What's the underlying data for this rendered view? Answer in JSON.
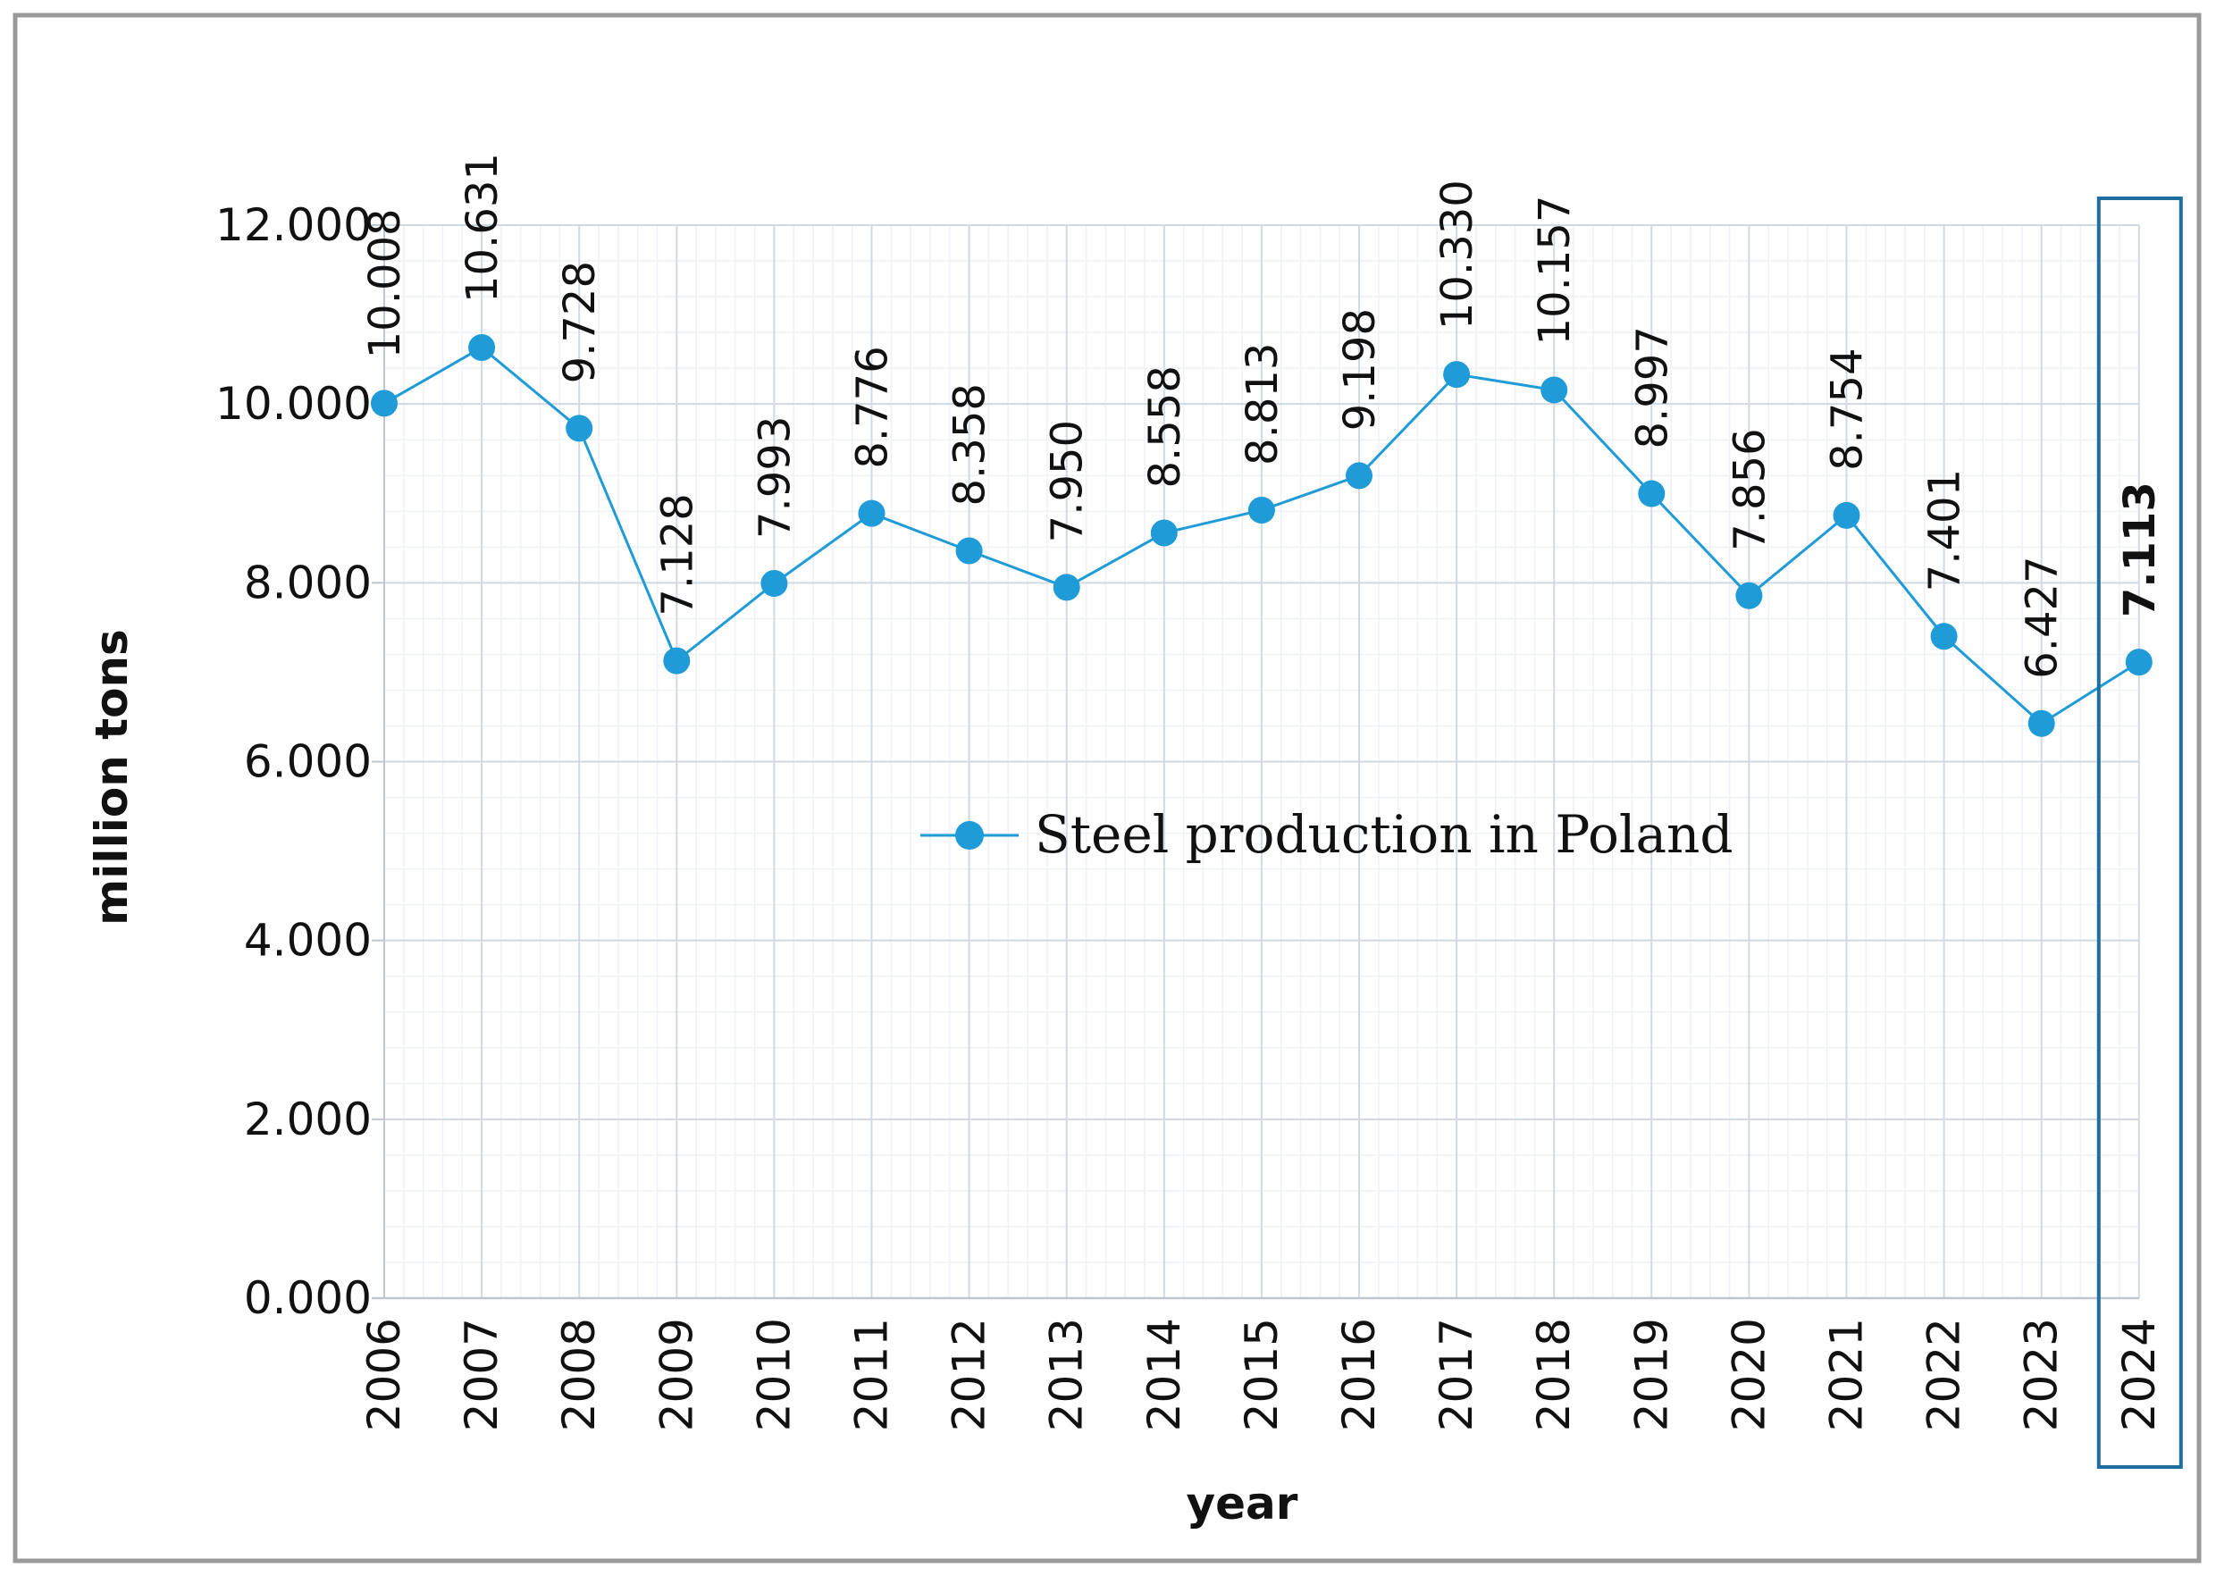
{
  "chart_data": {
    "type": "line",
    "categories": [
      "2006",
      "2007",
      "2008",
      "2009",
      "2010",
      "2011",
      "2012",
      "2013",
      "2014",
      "2015",
      "2016",
      "2017",
      "2018",
      "2019",
      "2020",
      "2021",
      "2022",
      "2023",
      "2024"
    ],
    "series": [
      {
        "name": "Steel production in Poland",
        "values": [
          10.008,
          10.631,
          9.728,
          7.128,
          7.993,
          8.776,
          8.358,
          7.95,
          8.558,
          8.813,
          9.198,
          10.33,
          10.157,
          8.997,
          7.856,
          8.754,
          7.401,
          6.427,
          7.113
        ],
        "labels": [
          "10.008",
          "10.631",
          "9.728",
          "7.128",
          "7.993",
          "8.776",
          "8.358",
          "7.950",
          "8.558",
          "8.813",
          "9.198",
          "10.330",
          "10.157",
          "8.997",
          "7.856",
          "8.754",
          "7.401",
          "6.427",
          "7.113"
        ],
        "color": "#1f9bd7"
      }
    ],
    "xlabel": "year",
    "ylabel": "million tons",
    "ylim": [
      0,
      12
    ],
    "yticks": [
      "0.000",
      "2.000",
      "4.000",
      "6.000",
      "8.000",
      "10.000",
      "12.000"
    ],
    "grid": true,
    "legend": "center",
    "highlight": {
      "category": "2024",
      "color": "#1f6e9e"
    }
  }
}
